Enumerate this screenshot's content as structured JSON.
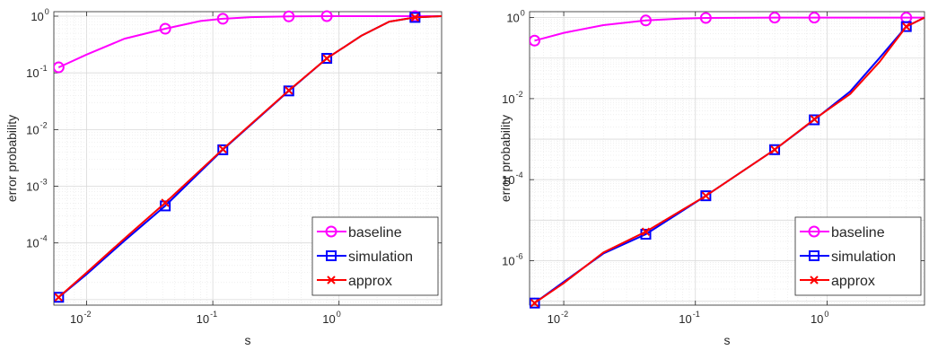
{
  "figure": {
    "panels": [
      {
        "xlabel": "s",
        "ylabel": "error probability",
        "x_ticks": [
          {
            "value": 0.01,
            "base": "10",
            "exp": "-2"
          },
          {
            "value": 0.1,
            "base": "10",
            "exp": "-1"
          },
          {
            "value": 1,
            "base": "10",
            "exp": "0"
          }
        ],
        "y_ticks": [
          {
            "value": 0.0001,
            "base": "10",
            "exp": "-4"
          },
          {
            "value": 0.001,
            "base": "10",
            "exp": "-3"
          },
          {
            "value": 0.01,
            "base": "10",
            "exp": "-2"
          },
          {
            "value": 0.1,
            "base": "10",
            "exp": "-1"
          },
          {
            "value": 1,
            "base": "10",
            "exp": "0"
          }
        ]
      },
      {
        "xlabel": "s",
        "ylabel": "error probability",
        "x_ticks": [
          {
            "value": 0.01,
            "base": "10",
            "exp": "-2"
          },
          {
            "value": 0.1,
            "base": "10",
            "exp": "-1"
          },
          {
            "value": 1,
            "base": "10",
            "exp": "0"
          }
        ],
        "y_ticks": [
          {
            "value": 1e-06,
            "base": "10",
            "exp": "-6"
          },
          {
            "value": 0.0001,
            "base": "10",
            "exp": "-4"
          },
          {
            "value": 0.01,
            "base": "10",
            "exp": "-2"
          },
          {
            "value": 1,
            "base": "10",
            "exp": "0"
          }
        ]
      }
    ]
  },
  "chart_data": [
    {
      "type": "line",
      "xscale": "log",
      "yscale": "log",
      "xlim": [
        0.0055,
        6.5
      ],
      "ylim": [
        8e-06,
        1.2
      ],
      "grid": true,
      "legend_position": "bottom-right",
      "xlabel": "s",
      "ylabel": "error probability",
      "series": [
        {
          "name": "baseline",
          "color": "#ff00ff",
          "marker": "circle",
          "x": [
            0.006,
            0.01,
            0.02,
            0.042,
            0.08,
            0.12,
            0.2,
            0.4,
            0.8,
            1.5,
            4,
            6.5
          ],
          "y": [
            0.125,
            0.21,
            0.4,
            0.6,
            0.82,
            0.9,
            0.96,
            0.99,
            1.0,
            1.0,
            1.0,
            1.0
          ],
          "marker_x": [
            0.006,
            0.042,
            0.12,
            0.4,
            0.8,
            4
          ],
          "marker_y": [
            0.125,
            0.6,
            0.9,
            0.99,
            1.0,
            1.0
          ]
        },
        {
          "name": "simulation",
          "color": "#0000ff",
          "marker": "square",
          "x": [
            0.006,
            0.01,
            0.02,
            0.042,
            0.12,
            0.4,
            0.8,
            1.5,
            2.5,
            4,
            6.5
          ],
          "y": [
            1.1e-05,
            2.8e-05,
            0.00011,
            0.00045,
            0.0044,
            0.048,
            0.18,
            0.45,
            0.8,
            0.95,
            1.0
          ],
          "marker_x": [
            0.006,
            0.042,
            0.12,
            0.4,
            0.8,
            4
          ],
          "marker_y": [
            1.1e-05,
            0.00045,
            0.0044,
            0.048,
            0.18,
            0.95
          ]
        },
        {
          "name": "approx",
          "color": "#ff0000",
          "marker": "x",
          "x": [
            0.006,
            0.01,
            0.02,
            0.042,
            0.12,
            0.4,
            0.8,
            1.5,
            2.5,
            4,
            6.5
          ],
          "y": [
            1.1e-05,
            3e-05,
            0.00012,
            0.00051,
            0.0045,
            0.049,
            0.18,
            0.45,
            0.8,
            0.95,
            1.0
          ],
          "marker_x": [
            0.006,
            0.042,
            0.12,
            0.4,
            0.8,
            4
          ],
          "marker_y": [
            1.1e-05,
            0.00051,
            0.0045,
            0.049,
            0.18,
            0.95
          ]
        }
      ]
    },
    {
      "type": "line",
      "xscale": "log",
      "yscale": "log",
      "xlim": [
        0.0055,
        5.5
      ],
      "ylim": [
        8e-08,
        1.4
      ],
      "grid": true,
      "legend_position": "bottom-right",
      "xlabel": "s",
      "ylabel": "error probability",
      "series": [
        {
          "name": "baseline",
          "color": "#ff00ff",
          "marker": "circle",
          "x": [
            0.006,
            0.01,
            0.02,
            0.042,
            0.08,
            0.12,
            0.4,
            0.8,
            4,
            5.5
          ],
          "y": [
            0.27,
            0.42,
            0.65,
            0.85,
            0.95,
            0.98,
            1.0,
            1.0,
            1.0,
            1.0
          ],
          "marker_x": [
            0.006,
            0.042,
            0.12,
            0.4,
            0.8,
            4
          ],
          "marker_y": [
            0.27,
            0.85,
            0.98,
            1.0,
            1.0,
            1.0
          ]
        },
        {
          "name": "simulation",
          "color": "#0000ff",
          "marker": "square",
          "x": [
            0.006,
            0.01,
            0.02,
            0.042,
            0.12,
            0.4,
            0.8,
            1.5,
            2.5,
            4,
            5.5
          ],
          "y": [
            9e-08,
            3e-07,
            1.5e-06,
            4.5e-06,
            4e-05,
            0.00055,
            0.003,
            0.015,
            0.1,
            0.6,
            1.0
          ],
          "marker_x": [
            0.006,
            0.042,
            0.12,
            0.4,
            0.8,
            4
          ],
          "marker_y": [
            9e-08,
            4.5e-06,
            4e-05,
            0.00055,
            0.003,
            0.6
          ]
        },
        {
          "name": "approx",
          "color": "#ff0000",
          "marker": "x",
          "x": [
            0.006,
            0.01,
            0.02,
            0.042,
            0.12,
            0.4,
            0.8,
            1.5,
            2.5,
            4,
            5.5
          ],
          "y": [
            9e-08,
            2.8e-07,
            1.6e-06,
            5.2e-06,
            4e-05,
            0.00055,
            0.0031,
            0.013,
            0.08,
            0.6,
            1.0
          ],
          "marker_x": [
            0.006,
            0.042,
            0.12,
            0.4,
            0.8,
            4
          ],
          "marker_y": [
            9e-08,
            5.2e-06,
            4e-05,
            0.00055,
            0.0031,
            0.6
          ]
        }
      ]
    }
  ]
}
